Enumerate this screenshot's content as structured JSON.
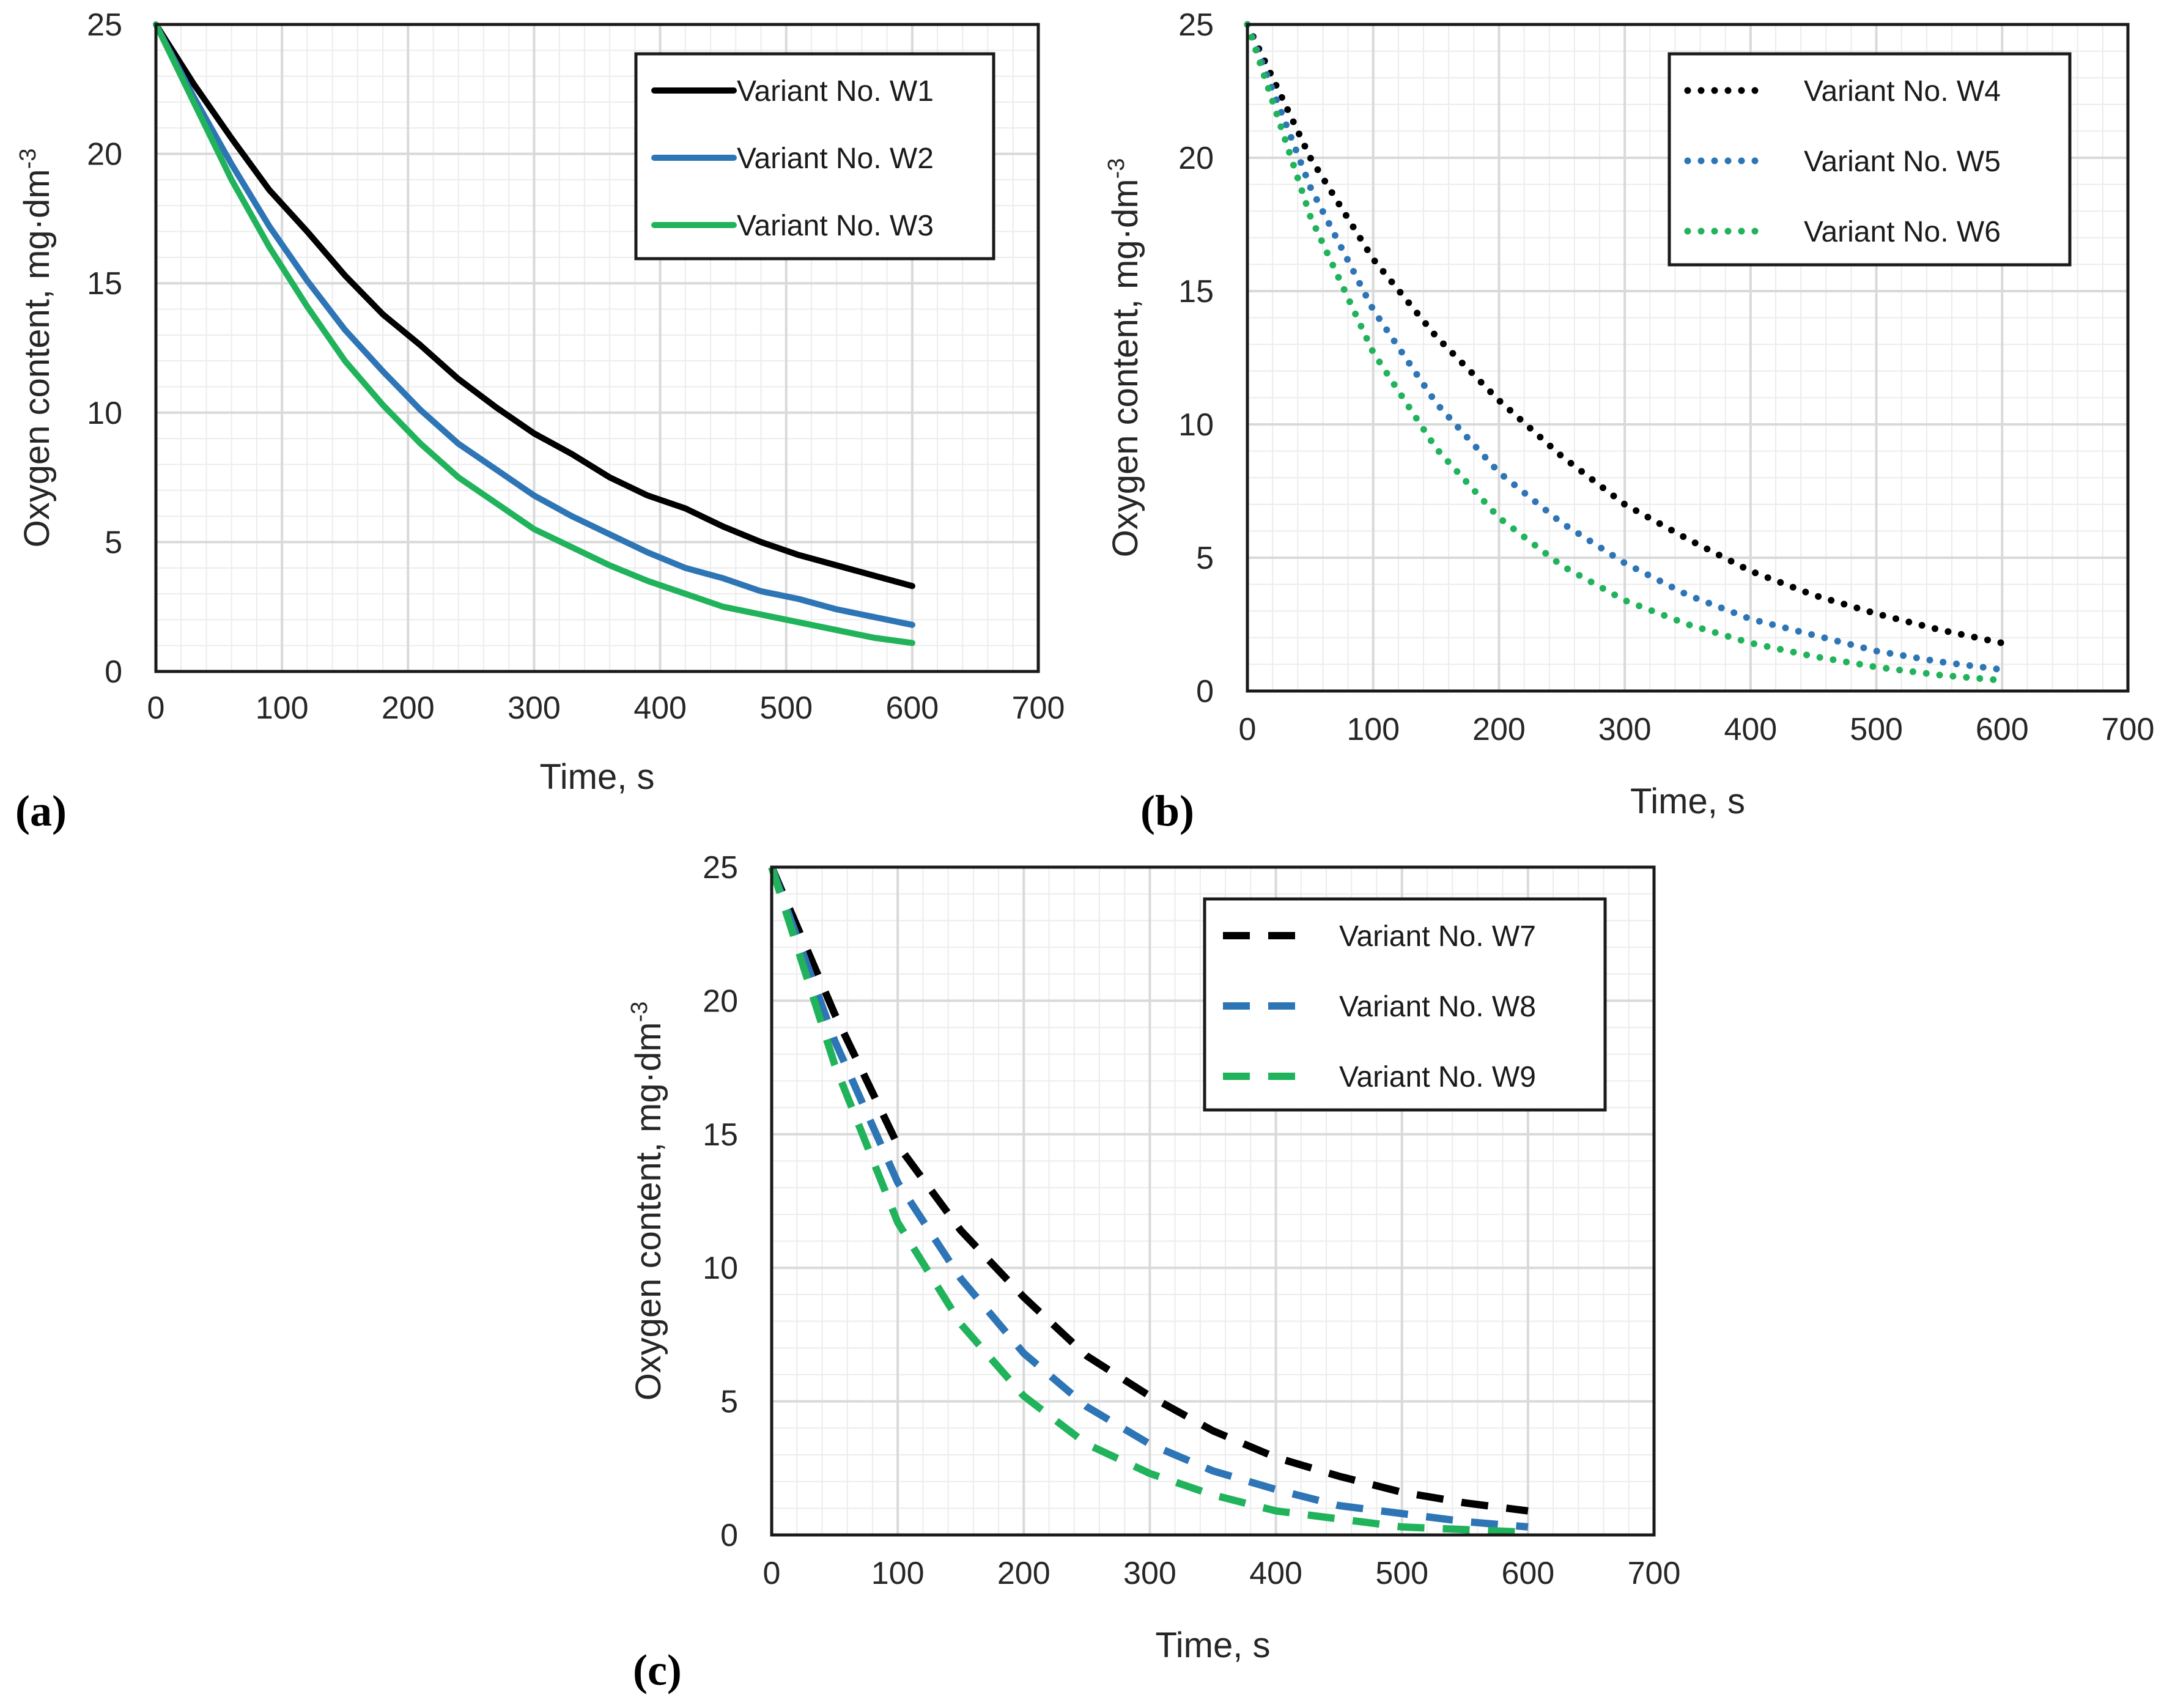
{
  "colors": {
    "black": "#000000",
    "blue": "#2e75b6",
    "green": "#21b35b"
  },
  "chart_data": [
    {
      "type": "line",
      "panel_label": "(a)",
      "xlabel": "Time, s",
      "ylabel": "Oxygen content, mg·dm",
      "ylabel_sup": "-3",
      "xlim": [
        0,
        700
      ],
      "ylim": [
        0,
        25
      ],
      "xticks": [
        "0",
        "100",
        "200",
        "300",
        "400",
        "500",
        "600",
        "700"
      ],
      "yticks": [
        "0",
        "5",
        "10",
        "15",
        "20",
        "25"
      ],
      "grid": true,
      "legend_position": "top-right",
      "series": [
        {
          "name": "Variant  No. W1",
          "color": "#000000",
          "style": "solid",
          "x": [
            0,
            30,
            60,
            90,
            120,
            150,
            180,
            210,
            240,
            270,
            300,
            330,
            360,
            390,
            420,
            450,
            480,
            510,
            540,
            570,
            600
          ],
          "y": [
            25,
            22.7,
            20.6,
            18.6,
            17.0,
            15.3,
            13.8,
            12.6,
            11.3,
            10.2,
            9.2,
            8.4,
            7.5,
            6.8,
            6.3,
            5.6,
            5.0,
            4.5,
            4.1,
            3.7,
            3.3
          ]
        },
        {
          "name": "Variant  No. W2",
          "color": "#2e75b6",
          "style": "solid",
          "x": [
            0,
            30,
            60,
            90,
            120,
            150,
            180,
            210,
            240,
            270,
            300,
            330,
            360,
            390,
            420,
            450,
            480,
            510,
            540,
            570,
            600
          ],
          "y": [
            25,
            22.2,
            19.6,
            17.2,
            15.1,
            13.2,
            11.6,
            10.1,
            8.8,
            7.8,
            6.8,
            6.0,
            5.3,
            4.6,
            4.0,
            3.6,
            3.1,
            2.8,
            2.4,
            2.1,
            1.8
          ]
        },
        {
          "name": "Variant  No. W3",
          "color": "#21b35b",
          "style": "solid",
          "x": [
            0,
            30,
            60,
            90,
            120,
            150,
            180,
            210,
            240,
            270,
            300,
            330,
            360,
            390,
            420,
            450,
            480,
            510,
            540,
            570,
            600
          ],
          "y": [
            25,
            22.0,
            19.0,
            16.4,
            14.1,
            12.0,
            10.3,
            8.8,
            7.5,
            6.5,
            5.5,
            4.8,
            4.1,
            3.5,
            3.0,
            2.5,
            2.2,
            1.9,
            1.6,
            1.3,
            1.1
          ]
        }
      ]
    },
    {
      "type": "line",
      "panel_label": "(b)",
      "xlabel": "Time, s",
      "ylabel": "Oxygen content, mg·dm",
      "ylabel_sup": "-3",
      "xlim": [
        0,
        700
      ],
      "ylim": [
        0,
        25
      ],
      "xticks": [
        "0",
        "100",
        "200",
        "300",
        "400",
        "500",
        "600",
        "700"
      ],
      "yticks": [
        "0",
        "5",
        "10",
        "15",
        "20",
        "25"
      ],
      "grid": true,
      "legend_position": "top-right",
      "series": [
        {
          "name": "Variant  No. W4",
          "color": "#000000",
          "style": "dotted",
          "x": [
            0,
            50,
            100,
            150,
            200,
            250,
            300,
            350,
            400,
            450,
            500,
            550,
            600
          ],
          "y": [
            25,
            20.0,
            16.2,
            13.3,
            10.9,
            8.8,
            7.0,
            5.7,
            4.5,
            3.6,
            2.9,
            2.3,
            1.8
          ]
        },
        {
          "name": "Variant  No. W5",
          "color": "#2e75b6",
          "style": "dotted",
          "x": [
            0,
            50,
            100,
            150,
            200,
            250,
            300,
            350,
            400,
            450,
            500,
            550,
            600
          ],
          "y": [
            25,
            18.9,
            14.3,
            10.8,
            8.2,
            6.3,
            4.8,
            3.6,
            2.7,
            2.1,
            1.5,
            1.1,
            0.8
          ]
        },
        {
          "name": "Variant  No. W6",
          "color": "#21b35b",
          "style": "dotted",
          "x": [
            0,
            50,
            100,
            150,
            200,
            250,
            300,
            350,
            400,
            450,
            500,
            550,
            600
          ],
          "y": [
            25,
            17.8,
            12.7,
            9.1,
            6.5,
            4.7,
            3.4,
            2.5,
            1.8,
            1.3,
            0.9,
            0.6,
            0.4
          ]
        }
      ]
    },
    {
      "type": "line",
      "panel_label": "(c)",
      "xlabel": "Time, s",
      "ylabel": "Oxygen content, mg·dm",
      "ylabel_sup": "-3",
      "xlim": [
        0,
        700
      ],
      "ylim": [
        0,
        25
      ],
      "xticks": [
        "0",
        "100",
        "200",
        "300",
        "400",
        "500",
        "600",
        "700"
      ],
      "yticks": [
        "0",
        "5",
        "10",
        "15",
        "20",
        "25"
      ],
      "grid": true,
      "legend_position": "top-right",
      "series": [
        {
          "name": "Variant  No. W7",
          "color": "#000000",
          "style": "dashed",
          "x": [
            0,
            50,
            100,
            150,
            200,
            250,
            300,
            350,
            400,
            450,
            500,
            550,
            600
          ],
          "y": [
            25,
            19.5,
            14.6,
            11.4,
            8.9,
            6.7,
            5.2,
            3.9,
            2.9,
            2.2,
            1.6,
            1.2,
            0.9
          ]
        },
        {
          "name": "Variant  No. W8",
          "color": "#2e75b6",
          "style": "dashed",
          "x": [
            0,
            50,
            100,
            150,
            200,
            250,
            300,
            350,
            400,
            450,
            500,
            550,
            600
          ],
          "y": [
            25,
            18.5,
            13.2,
            9.6,
            6.8,
            4.8,
            3.4,
            2.4,
            1.7,
            1.1,
            0.8,
            0.5,
            0.3
          ]
        },
        {
          "name": "Variant  No. W9",
          "color": "#21b35b",
          "style": "dashed",
          "x": [
            0,
            50,
            100,
            150,
            200,
            250,
            300,
            350,
            400,
            450,
            500,
            550,
            600
          ],
          "y": [
            25,
            17.6,
            11.7,
            7.9,
            5.2,
            3.4,
            2.3,
            1.5,
            0.9,
            0.6,
            0.3,
            0.2,
            0.1
          ]
        }
      ]
    }
  ]
}
